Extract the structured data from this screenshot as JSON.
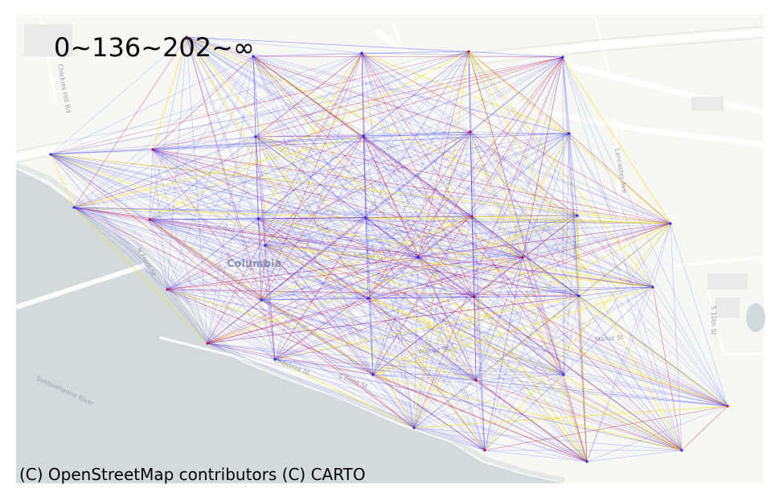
{
  "legend": {
    "title": "0~136~202~∞"
  },
  "attribution": "(C) OpenStreetMap contributors (C) CARTO",
  "colors": {
    "low": "#2b2bff",
    "mid": "#c8103c",
    "high": "#f2e51f",
    "water": "#d4dadc",
    "land": "#f7f7f5",
    "road": "#ffffff",
    "label": "#9aa3a8"
  },
  "basemap_labels": [
    {
      "text": "Columbia",
      "big": true
    },
    {
      "text": "N Front St"
    },
    {
      "text": "S Front St"
    },
    {
      "text": "Locust St"
    },
    {
      "text": "Walnut St"
    },
    {
      "text": "Manor St"
    },
    {
      "text": "Chestnut St"
    },
    {
      "text": "S 10th St"
    },
    {
      "text": "Susquehanna River"
    },
    {
      "text": "Chickies Hill Rd"
    },
    {
      "text": "Lancaster Ave"
    }
  ],
  "nodes": [
    {
      "id": "n1"
    },
    {
      "id": "n2"
    },
    {
      "id": "n3"
    },
    {
      "id": "n4"
    },
    {
      "id": "n5"
    },
    {
      "id": "n6"
    },
    {
      "id": "n7"
    },
    {
      "id": "n8"
    },
    {
      "id": "n9"
    },
    {
      "id": "n10"
    },
    {
      "id": "n11"
    },
    {
      "id": "n12"
    },
    {
      "id": "n13"
    },
    {
      "id": "n14"
    },
    {
      "id": "n15"
    },
    {
      "id": "n16"
    },
    {
      "id": "n17"
    },
    {
      "id": "n18"
    },
    {
      "id": "n19"
    },
    {
      "id": "n20"
    },
    {
      "id": "n21"
    },
    {
      "id": "n22"
    },
    {
      "id": "n23"
    },
    {
      "id": "n24"
    },
    {
      "id": "n25"
    },
    {
      "id": "n26"
    },
    {
      "id": "n27"
    },
    {
      "id": "n28"
    },
    {
      "id": "n29"
    },
    {
      "id": "n30"
    },
    {
      "id": "n31"
    },
    {
      "id": "n32"
    },
    {
      "id": "n33"
    },
    {
      "id": "n34"
    },
    {
      "id": "n35"
    },
    {
      "id": "n36"
    },
    {
      "id": "n37"
    }
  ]
}
